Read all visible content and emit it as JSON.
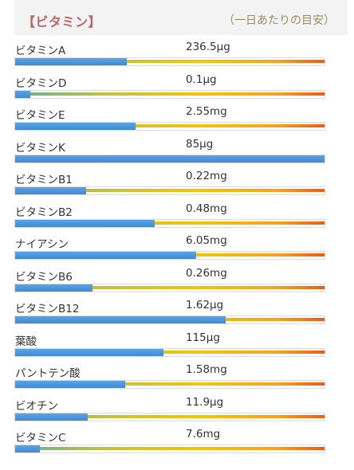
{
  "header": {
    "title": "【ビタミン】",
    "note": "（一日あたりの目安）"
  },
  "colors": {
    "title": "#b36a6a",
    "bar_fill": "#4a90dc",
    "gradient_end": "#f05a14"
  },
  "vitamins": [
    {
      "name": "ビタミンA",
      "value": "236.5μg",
      "fill": 0.36
    },
    {
      "name": "ビタミンD",
      "value": "0.1μg",
      "fill": 0.05
    },
    {
      "name": "ビタミンE",
      "value": "2.55mg",
      "fill": 0.39
    },
    {
      "name": "ビタミンK",
      "value": "85μg",
      "fill": 1.0
    },
    {
      "name": "ビタミンB1",
      "value": "0.22mg",
      "fill": 0.23
    },
    {
      "name": "ビタミンB2",
      "value": "0.48mg",
      "fill": 0.45
    },
    {
      "name": "ナイアシン",
      "value": "6.05mg",
      "fill": 0.585
    },
    {
      "name": "ビタミンB6",
      "value": "0.26mg",
      "fill": 0.25
    },
    {
      "name": "ビタミンB12",
      "value": "1.62μg",
      "fill": 0.68
    },
    {
      "name": "葉酸",
      "value": "115μg",
      "fill": 0.48
    },
    {
      "name": "パントテン酸",
      "value": "1.58mg",
      "fill": 0.355
    },
    {
      "name": "ビオチン",
      "value": "11.9μg",
      "fill": 0.235
    },
    {
      "name": "ビタミンC",
      "value": "7.6mg",
      "fill": 0.08
    }
  ]
}
